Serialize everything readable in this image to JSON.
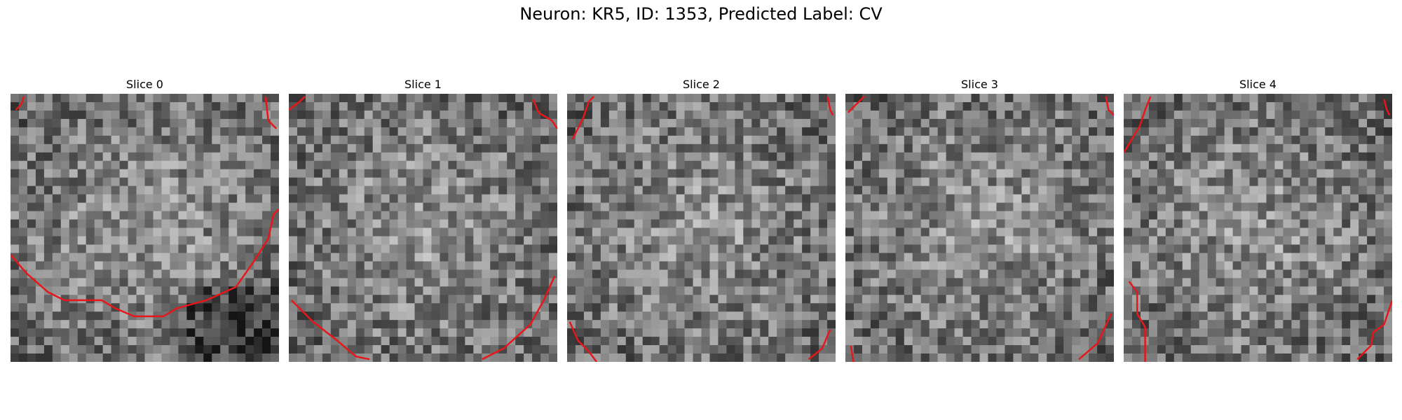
{
  "figure": {
    "title": "Neuron: KR5, ID: 1353, Predicted Label: CV"
  },
  "colors": {
    "contour": "#e8161a",
    "background": "#ffffff"
  },
  "panels": [
    {
      "title": "Slice 0",
      "seed": 11,
      "contours": [
        [
          [
            0.0,
            0.6
          ],
          [
            0.06,
            0.67
          ],
          [
            0.14,
            0.74
          ],
          [
            0.2,
            0.77
          ],
          [
            0.34,
            0.77
          ],
          [
            0.39,
            0.8
          ],
          [
            0.46,
            0.83
          ],
          [
            0.57,
            0.83
          ],
          [
            0.62,
            0.8
          ],
          [
            0.73,
            0.77
          ],
          [
            0.84,
            0.72
          ],
          [
            0.91,
            0.62
          ],
          [
            0.96,
            0.54
          ],
          [
            0.98,
            0.45
          ],
          [
            1.0,
            0.43
          ]
        ],
        [
          [
            0.95,
            0.01
          ],
          [
            0.96,
            0.1
          ],
          [
            0.99,
            0.13
          ]
        ],
        [
          [
            0.02,
            0.06
          ],
          [
            0.04,
            0.04
          ],
          [
            0.05,
            0.01
          ]
        ]
      ]
    },
    {
      "title": "Slice 1",
      "seed": 23,
      "contours": [
        [
          [
            0.01,
            0.77
          ],
          [
            0.09,
            0.85
          ],
          [
            0.18,
            0.92
          ],
          [
            0.25,
            0.98
          ],
          [
            0.3,
            0.99
          ]
        ],
        [
          [
            0.72,
            0.99
          ],
          [
            0.8,
            0.95
          ],
          [
            0.9,
            0.86
          ],
          [
            0.95,
            0.77
          ],
          [
            0.99,
            0.68
          ]
        ],
        [
          [
            0.91,
            0.02
          ],
          [
            0.93,
            0.07
          ],
          [
            0.98,
            0.1
          ],
          [
            1.0,
            0.13
          ]
        ],
        [
          [
            0.0,
            0.06
          ],
          [
            0.04,
            0.03
          ],
          [
            0.06,
            0.01
          ]
        ]
      ]
    },
    {
      "title": "Slice 2",
      "seed": 37,
      "contours": [
        [
          [
            0.02,
            0.17
          ],
          [
            0.06,
            0.09
          ],
          [
            0.08,
            0.03
          ],
          [
            0.1,
            0.01
          ]
        ],
        [
          [
            0.97,
            0.01
          ],
          [
            0.98,
            0.06
          ],
          [
            0.99,
            0.08
          ]
        ],
        [
          [
            0.01,
            0.85
          ],
          [
            0.04,
            0.92
          ],
          [
            0.08,
            0.96
          ],
          [
            0.11,
            1.0
          ]
        ],
        [
          [
            0.9,
            0.99
          ],
          [
            0.95,
            0.95
          ],
          [
            0.98,
            0.88
          ]
        ]
      ]
    },
    {
      "title": "Slice 3",
      "seed": 53,
      "contours": [
        [
          [
            0.01,
            0.07
          ],
          [
            0.04,
            0.04
          ],
          [
            0.07,
            0.01
          ]
        ],
        [
          [
            0.97,
            0.01
          ],
          [
            0.98,
            0.06
          ],
          [
            1.0,
            0.08
          ]
        ],
        [
          [
            0.02,
            0.94
          ],
          [
            0.03,
            1.0
          ]
        ],
        [
          [
            0.87,
            0.99
          ],
          [
            0.94,
            0.93
          ],
          [
            0.99,
            0.82
          ]
        ]
      ]
    },
    {
      "title": "Slice 4",
      "seed": 71,
      "contours": [
        [
          [
            0.0,
            0.22
          ],
          [
            0.03,
            0.17
          ],
          [
            0.06,
            0.12
          ],
          [
            0.08,
            0.06
          ],
          [
            0.1,
            0.01
          ]
        ],
        [
          [
            0.97,
            0.02
          ],
          [
            0.98,
            0.06
          ],
          [
            0.99,
            0.08
          ]
        ],
        [
          [
            0.02,
            0.7
          ],
          [
            0.05,
            0.74
          ],
          [
            0.05,
            0.82
          ],
          [
            0.08,
            0.87
          ],
          [
            0.08,
            1.0
          ]
        ],
        [
          [
            0.87,
            0.99
          ],
          [
            0.92,
            0.94
          ],
          [
            0.93,
            0.89
          ],
          [
            0.97,
            0.86
          ],
          [
            1.0,
            0.77
          ]
        ]
      ]
    }
  ]
}
